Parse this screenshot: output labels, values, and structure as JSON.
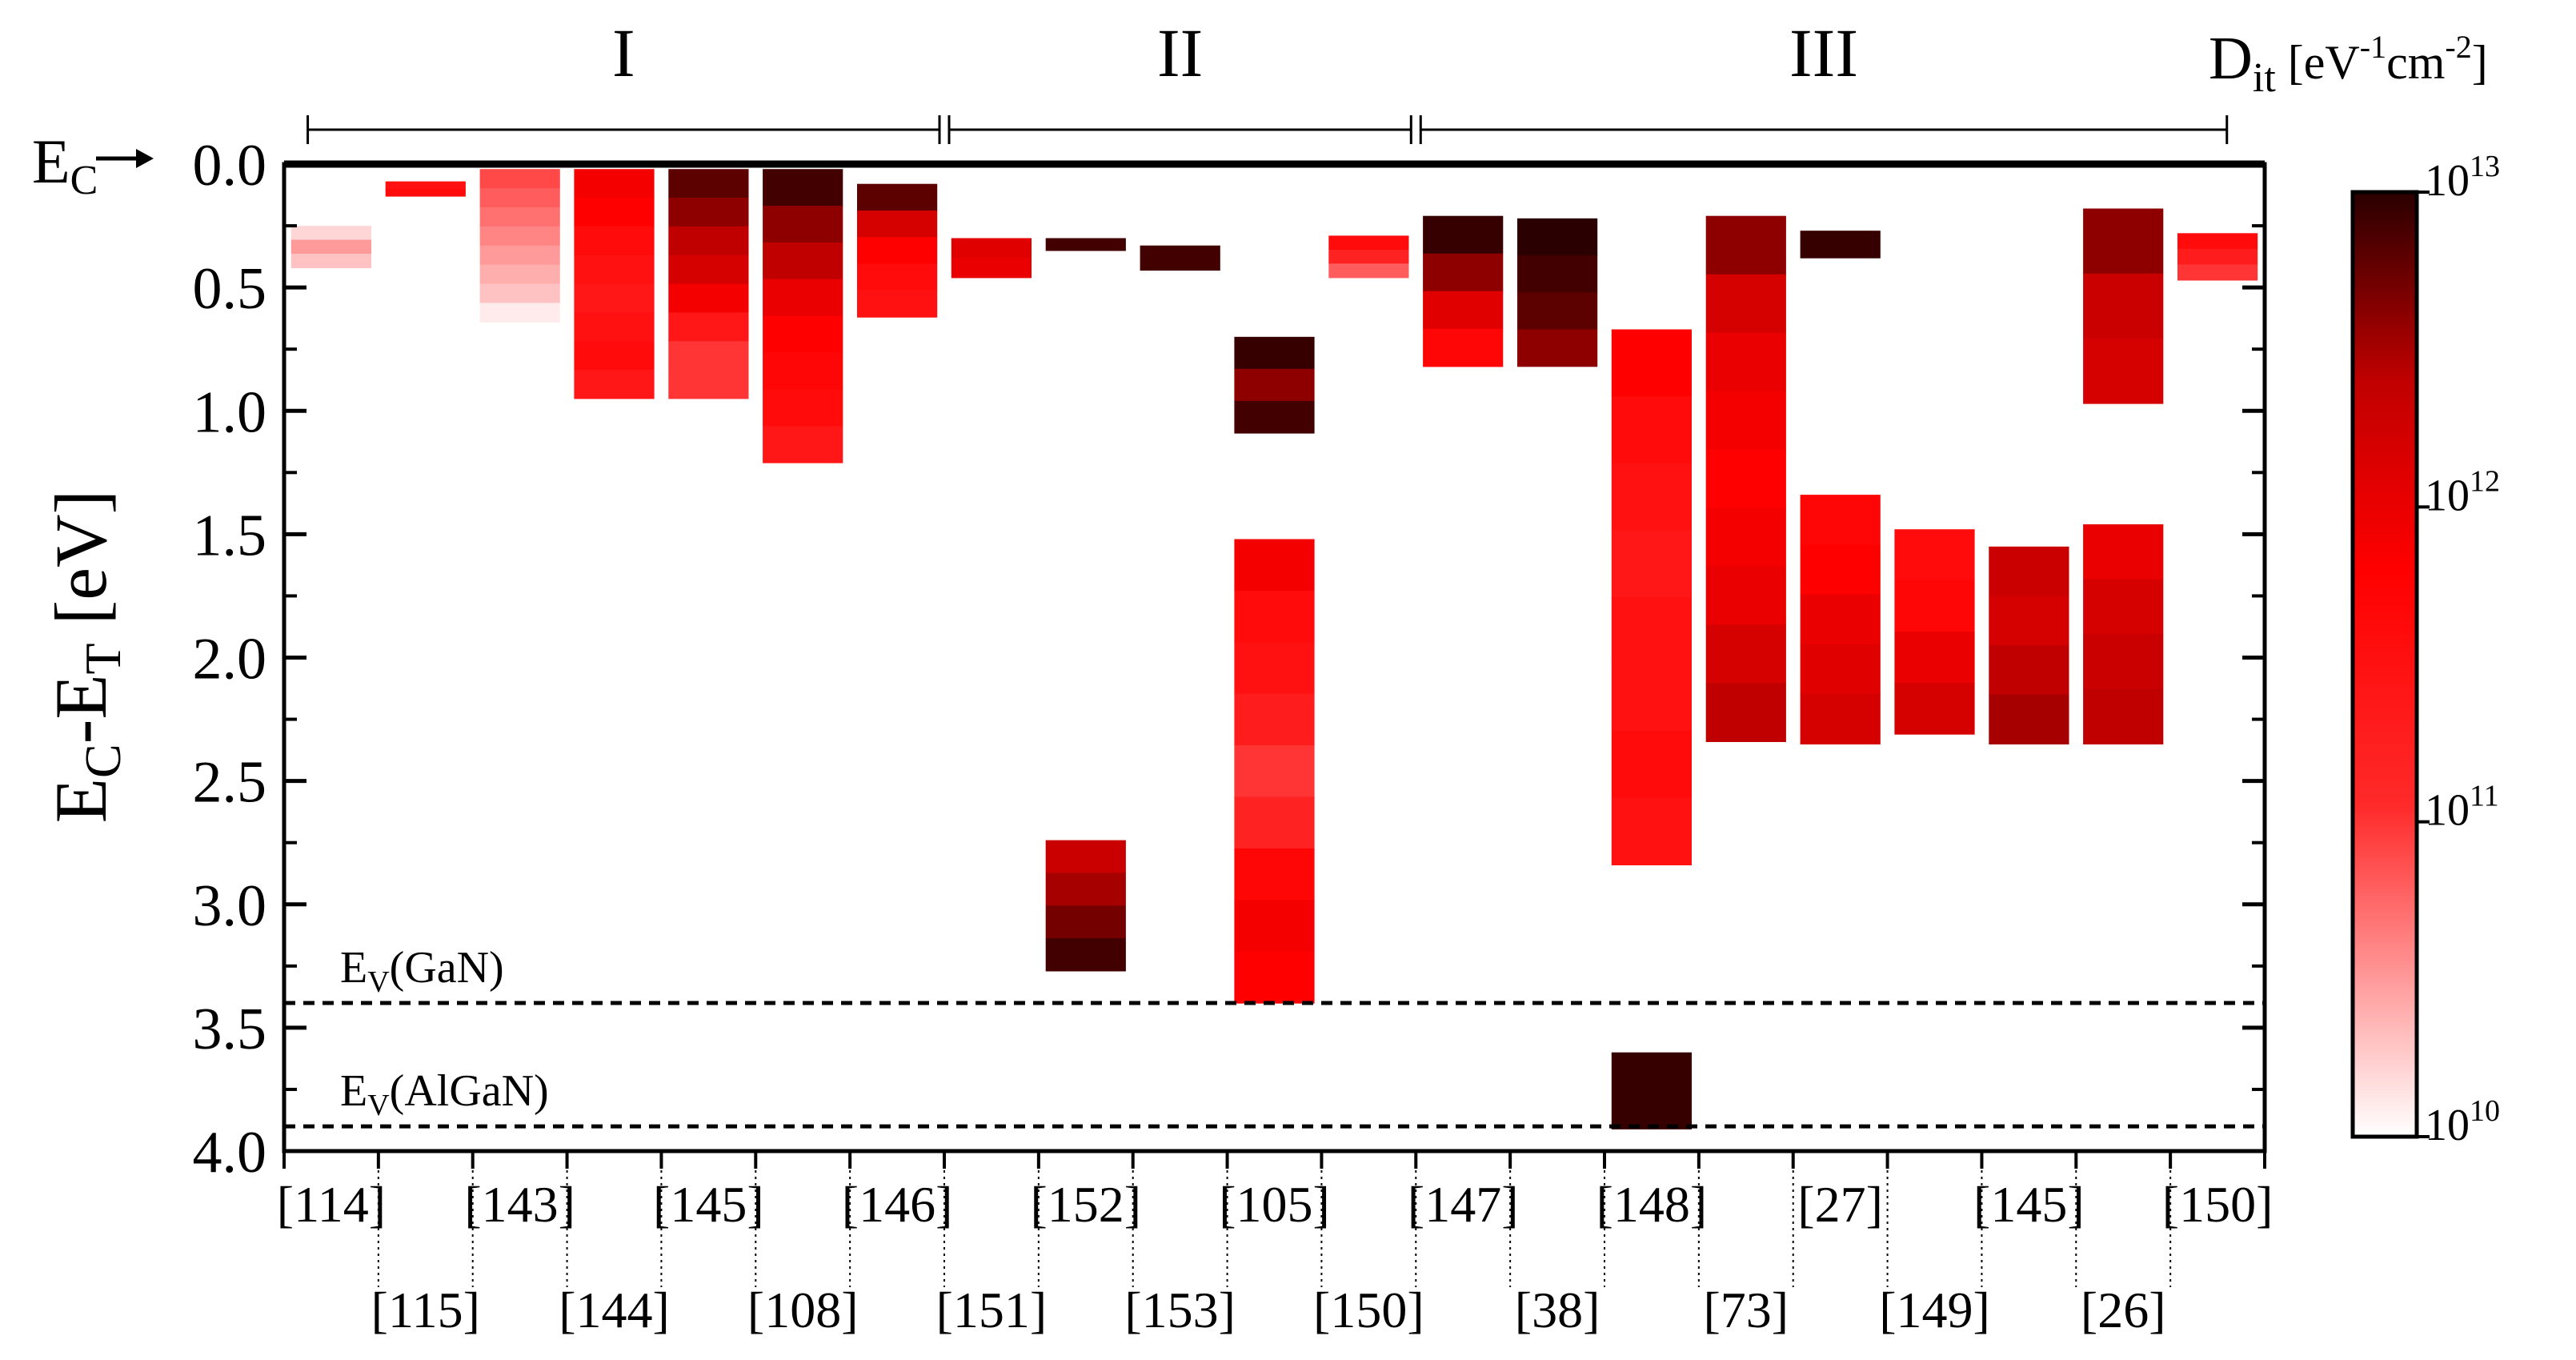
{
  "chart_data": {
    "type": "bar",
    "title": "",
    "ylabel": {
      "main": "E",
      "sub1": "C",
      "mid": "-E",
      "sub2": "T",
      "unit": " [eV]"
    },
    "ylim": [
      0,
      4.0
    ],
    "y_ticks": [
      "0.0",
      "0.5",
      "1.0",
      "1.5",
      "2.0",
      "2.5",
      "3.0",
      "3.5",
      "4.0"
    ],
    "ec_marker": {
      "main": "E",
      "sub": "C"
    },
    "colorbar": {
      "label": {
        "main": "D",
        "sub": "it",
        "unit_open": " [eV",
        "sup1": "-1",
        "mid": "cm",
        "sup2": "-2",
        "unit_close": "]"
      },
      "scale": "log",
      "min_exponent": 10,
      "max_exponent": 13,
      "ticks": [
        {
          "base": "10",
          "exp": "13",
          "value_exp": 13
        },
        {
          "base": "10",
          "exp": "12",
          "value_exp": 12
        },
        {
          "base": "10",
          "exp": "11",
          "value_exp": 11
        },
        {
          "base": "10",
          "exp": "10",
          "value_exp": 10
        }
      ],
      "colors": [
        "#ffffff",
        "#ff2a2a",
        "#ff0000",
        "#c00000",
        "#2a0000"
      ]
    },
    "groups": [
      {
        "label": "I",
        "from": 0,
        "to": 7
      },
      {
        "label": "II",
        "from": 7,
        "to": 12
      },
      {
        "label": "III",
        "from": 12,
        "to": 21
      }
    ],
    "reference_lines": [
      {
        "main": "E",
        "sub": "V",
        "suffix": "(GaN)",
        "value": 3.4
      },
      {
        "main": "E",
        "sub": "V",
        "suffix": "(AlGaN)",
        "value": 3.9
      }
    ],
    "categories": [
      "[114]",
      "[115]",
      "[143]",
      "[144]",
      "[145]",
      "[108]",
      "[146]",
      "[151]",
      "[152]",
      "[153]",
      "[105]",
      "[150]",
      "[147]",
      "[38]",
      "[148]",
      "[73]",
      "[27]",
      "[149]",
      "[145]",
      "[26]",
      "[150]"
    ],
    "bars": [
      {
        "ref": "[114]",
        "top": 0.25,
        "bottom": 0.42,
        "dit_exp": [
          10.2,
          10.5,
          10.3
        ]
      },
      {
        "ref": "[115]",
        "top": 0.07,
        "bottom": 0.13,
        "dit_exp": [
          11.5,
          11.6
        ]
      },
      {
        "ref": "[143]",
        "top": 0.02,
        "bottom": 0.64,
        "dit_exp": [
          10.9,
          10.8,
          10.7,
          10.6,
          10.5,
          10.4,
          10.3,
          10.1
        ]
      },
      {
        "ref": "[144]",
        "top": 0.02,
        "bottom": 0.95,
        "dit_exp": [
          11.9,
          11.8,
          11.6,
          11.5,
          11.4,
          11.5,
          11.6,
          11.4
        ]
      },
      {
        "ref": "[145]",
        "top": 0.02,
        "bottom": 0.95,
        "dit_exp": [
          12.8,
          12.6,
          12.4,
          12.2,
          11.9,
          11.4,
          11.0,
          11.0
        ]
      },
      {
        "ref": "[108]",
        "top": 0.02,
        "bottom": 1.21,
        "dit_exp": [
          12.9,
          12.6,
          12.4,
          12.0,
          11.8,
          11.7,
          11.6,
          11.4
        ]
      },
      {
        "ref": "[146]",
        "top": 0.08,
        "bottom": 0.62,
        "dit_exp": [
          12.8,
          12.2,
          11.8,
          11.6,
          11.5
        ]
      },
      {
        "ref": "[151]",
        "top": 0.3,
        "bottom": 0.46,
        "dit_exp": [
          12.1,
          12.0
        ]
      },
      {
        "ref": "[152]",
        "top": 0.3,
        "bottom": 0.35,
        "dit_exp": [
          12.9
        ]
      },
      {
        "ref": "[152]",
        "top": 2.74,
        "bottom": 3.27,
        "dit_exp": [
          12.3,
          12.5,
          12.7,
          12.9
        ]
      },
      {
        "ref": "[153]",
        "top": 0.33,
        "bottom": 0.43,
        "dit_exp": [
          12.9
        ]
      },
      {
        "ref": "[105]",
        "top": 0.7,
        "bottom": 1.09,
        "dit_exp": [
          12.95,
          12.6,
          12.9
        ]
      },
      {
        "ref": "[105]",
        "top": 1.52,
        "bottom": 3.4,
        "dit_exp": [
          11.9,
          11.6,
          11.5,
          11.3,
          11.0,
          11.2,
          11.7,
          11.9,
          11.8
        ]
      },
      {
        "ref": "[150]",
        "top": 0.29,
        "bottom": 0.46,
        "dit_exp": [
          11.6,
          11.2,
          10.8
        ]
      },
      {
        "ref": "[147]",
        "top": 0.21,
        "bottom": 0.82,
        "dit_exp": [
          12.95,
          12.6,
          12.1,
          11.7
        ]
      },
      {
        "ref": "[38]",
        "top": 0.22,
        "bottom": 0.82,
        "dit_exp": [
          13.0,
          12.9,
          12.8,
          12.6
        ]
      },
      {
        "ref": "[148]",
        "top": 0.67,
        "bottom": 2.84,
        "dit_exp": [
          11.8,
          11.6,
          11.5,
          11.4,
          11.5,
          11.5,
          11.6,
          11.5
        ]
      },
      {
        "ref": "[148]",
        "top": 3.6,
        "bottom": 3.91,
        "dit_exp": [
          12.95
        ]
      },
      {
        "ref": "[73]",
        "top": 0.21,
        "bottom": 2.34,
        "dit_exp": [
          12.6,
          12.2,
          12.0,
          11.9,
          11.8,
          11.9,
          12.0,
          12.2,
          12.4
        ]
      },
      {
        "ref": "[27]",
        "top": 0.27,
        "bottom": 0.38,
        "dit_exp": [
          12.95
        ]
      },
      {
        "ref": "[27]",
        "top": 1.34,
        "bottom": 2.35,
        "dit_exp": [
          11.7,
          11.8,
          12.0,
          12.1,
          12.2
        ]
      },
      {
        "ref": "[149]",
        "top": 1.48,
        "bottom": 2.31,
        "dit_exp": [
          11.6,
          11.7,
          12.0,
          12.2
        ]
      },
      {
        "ref": "[145]",
        "top": 1.55,
        "bottom": 2.35,
        "dit_exp": [
          12.3,
          12.2,
          12.4,
          12.5
        ]
      },
      {
        "ref": "[26]",
        "top": 0.18,
        "bottom": 0.97,
        "dit_exp": [
          12.6,
          12.3,
          12.2
        ]
      },
      {
        "ref": "[26]",
        "top": 1.46,
        "bottom": 2.35,
        "dit_exp": [
          12.0,
          12.2,
          12.3,
          12.4
        ]
      },
      {
        "ref": "[150]",
        "top": 0.28,
        "bottom": 0.47,
        "dit_exp": [
          11.6,
          11.3,
          11.0
        ]
      }
    ]
  }
}
